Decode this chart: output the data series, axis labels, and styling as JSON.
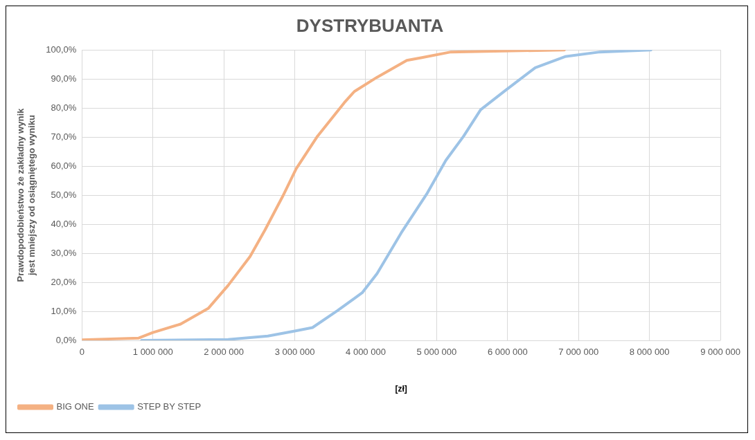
{
  "chart_data": {
    "type": "line",
    "title": "DYSTRYBUANTA",
    "xlabel": "[zł]",
    "ylabel": "Prawdopodobieństwo że zakładny wynik jest mniejszy od osiągniętego wyniku",
    "series": [
      {
        "name": "BIG ONE",
        "color": "#f4b183",
        "x": [
          0,
          800000,
          1000000,
          1390000,
          1780000,
          2060000,
          2370000,
          2580000,
          2830000,
          3020000,
          3320000,
          3700000,
          3840000,
          4160000,
          4580000,
          4780000,
          5200000,
          6800000
        ],
        "values": [
          0.2,
          0.8,
          2.7,
          5.6,
          11.0,
          18.9,
          28.9,
          38.0,
          49.6,
          59.1,
          70.3,
          81.9,
          85.7,
          90.6,
          96.4,
          97.3,
          99.3,
          100
        ]
      },
      {
        "name": "STEP BY STEP",
        "color": "#9dc3e6",
        "x": [
          840000,
          2060000,
          2620000,
          3000000,
          3250000,
          3600000,
          3950000,
          4160000,
          4500000,
          4860000,
          5130000,
          5380000,
          5620000,
          5970000,
          6390000,
          6810000,
          7300000,
          8020000
        ],
        "values": [
          0,
          0.3,
          1.5,
          3.2,
          4.4,
          10.2,
          16.4,
          23.0,
          37.0,
          50.4,
          62.0,
          70.3,
          79.4,
          86.1,
          93.9,
          97.7,
          99.3,
          100
        ]
      }
    ],
    "xlim": [
      0,
      9000000
    ],
    "xticks": [
      0,
      {
        "value": 1000000,
        "label": "1 000 000"
      },
      {
        "value": 2000000,
        "label": "2 000 000"
      },
      {
        "value": 3000000,
        "label": "3 000 000"
      },
      {
        "value": 4000000,
        "label": "4 000 000"
      },
      {
        "value": 5000000,
        "label": "5 000 000"
      },
      {
        "value": 6000000,
        "label": "6 000 000"
      },
      {
        "value": 7000000,
        "label": "7 000 000"
      },
      {
        "value": 8000000,
        "label": "8 000 000"
      },
      {
        "value": 9000000,
        "label": "9 000 000"
      }
    ],
    "ylim": [
      0,
      100
    ],
    "yticks": [
      {
        "value": 0,
        "label": "0,0%"
      },
      {
        "value": 10,
        "label": "10,0%"
      },
      {
        "value": 20,
        "label": "20,0%"
      },
      {
        "value": 30,
        "label": "30,0%"
      },
      {
        "value": 40,
        "label": "40,0%"
      },
      {
        "value": 50,
        "label": "50,0%"
      },
      {
        "value": 60,
        "label": "60,0%"
      },
      {
        "value": 70,
        "label": "70,0%"
      },
      {
        "value": 80,
        "label": "80,0%"
      },
      {
        "value": 90,
        "label": "90,0%"
      },
      {
        "value": 100,
        "label": "100,0%"
      }
    ],
    "grid": true,
    "legend": "bottom left",
    "marker": "none",
    "line_style": "solid"
  }
}
